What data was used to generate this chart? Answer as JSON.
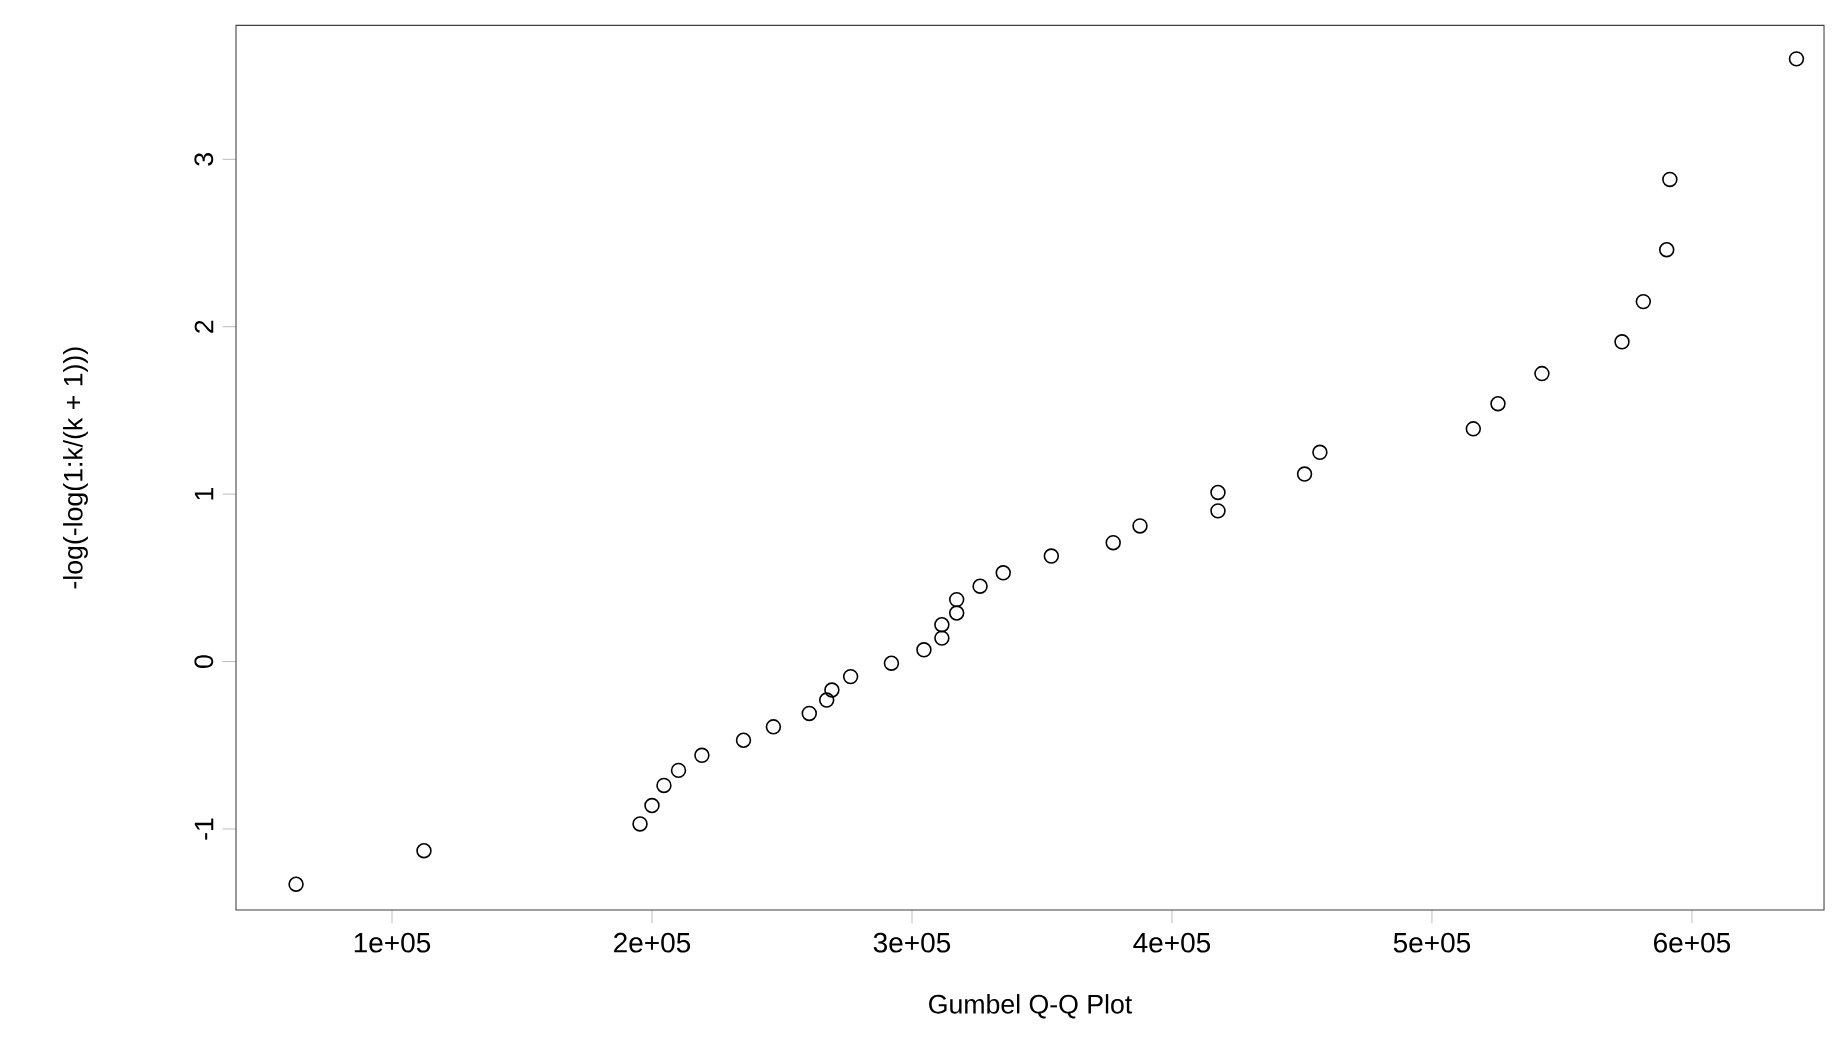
{
  "chart_data": {
    "type": "scatter",
    "xlabel": "Gumbel Q-Q Plot",
    "ylabel": "-log(-log(1:k/(k + 1)))",
    "marker": "circle",
    "xlim": [
      40000,
      650800
    ],
    "ylim": [
      -1.484,
      3.8
    ],
    "xticks": [
      {
        "value": 100000,
        "label": "1e+05"
      },
      {
        "value": 200000,
        "label": "2e+05"
      },
      {
        "value": 300000,
        "label": "3e+05"
      },
      {
        "value": 400000,
        "label": "4e+05"
      },
      {
        "value": 500000,
        "label": "5e+05"
      },
      {
        "value": 600000,
        "label": "6e+05"
      }
    ],
    "yticks": [
      -1,
      0,
      1,
      2,
      3
    ],
    "series": [
      {
        "color": "#000000",
        "x": [
          63100,
          112300,
          195400,
          200000,
          204600,
          210200,
          219200,
          235200,
          246700,
          260500,
          267200,
          269200,
          276400,
          292100,
          304600,
          311500,
          311500,
          317200,
          317200,
          326200,
          335100,
          353600,
          377400,
          387700,
          417700,
          417700,
          451000,
          456900,
          515900,
          525400,
          542300,
          573100,
          581300,
          590300,
          591500,
          640200
        ],
        "values": [
          -1.33,
          -1.13,
          -0.97,
          -0.86,
          -0.74,
          -0.65,
          -0.56,
          -0.47,
          -0.39,
          -0.31,
          -0.23,
          -0.17,
          -0.09,
          -0.01,
          0.07,
          0.14,
          0.22,
          0.29,
          0.37,
          0.45,
          0.53,
          0.63,
          0.71,
          0.81,
          0.9,
          1.01,
          1.12,
          1.25,
          1.39,
          1.54,
          1.72,
          1.91,
          2.15,
          2.46,
          2.88,
          3.6
        ]
      }
    ]
  }
}
